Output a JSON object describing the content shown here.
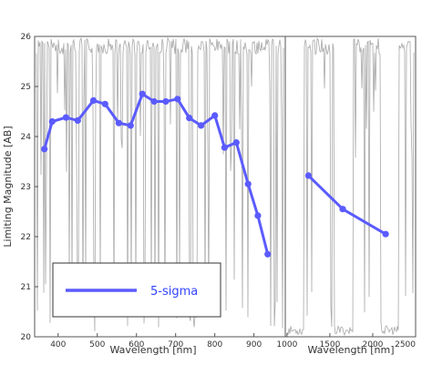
{
  "chart_data": [
    {
      "type": "line",
      "xlabel": "Wavelength [nm]",
      "ylabel": "Limiting Magnitude [AB]",
      "xlim": [
        340,
        980
      ],
      "ylim": [
        20,
        26
      ],
      "xticks": [
        "400",
        "500",
        "600",
        "700",
        "800",
        "900"
      ],
      "yticks": [
        "20",
        "21",
        "22",
        "23",
        "24",
        "25",
        "26"
      ],
      "grid": false,
      "legend": {
        "placement": "bottom-left",
        "entries": [
          "5-sigma"
        ]
      },
      "series": [
        {
          "name": "5-sigma",
          "color": "#5b5bff",
          "x": [
            365,
            385,
            420,
            450,
            490,
            520,
            555,
            585,
            615,
            645,
            675,
            705,
            735,
            765,
            800,
            825,
            855,
            885,
            910,
            935
          ],
          "y": [
            23.75,
            24.3,
            24.38,
            24.32,
            24.72,
            24.65,
            24.27,
            24.22,
            24.85,
            24.7,
            24.7,
            24.75,
            24.37,
            24.22,
            24.42,
            23.78,
            23.88,
            23.05,
            22.42,
            21.65
          ]
        }
      ]
    },
    {
      "type": "line",
      "xlabel": "Wavelength [nm]",
      "xlim": [
        980,
        2500
      ],
      "ylim": [
        20,
        26
      ],
      "xticks": [
        "1000",
        "1500",
        "2000",
        "2500"
      ],
      "grid": false,
      "series": [
        {
          "name": "5-sigma",
          "color": "#5b5bff",
          "x": [
            1250,
            1650,
            2150
          ],
          "y": [
            23.22,
            22.55,
            22.05
          ]
        }
      ]
    }
  ],
  "colors": {
    "line": "#5b5bff",
    "background_spectrum": "#999999",
    "axes": "#555555"
  }
}
